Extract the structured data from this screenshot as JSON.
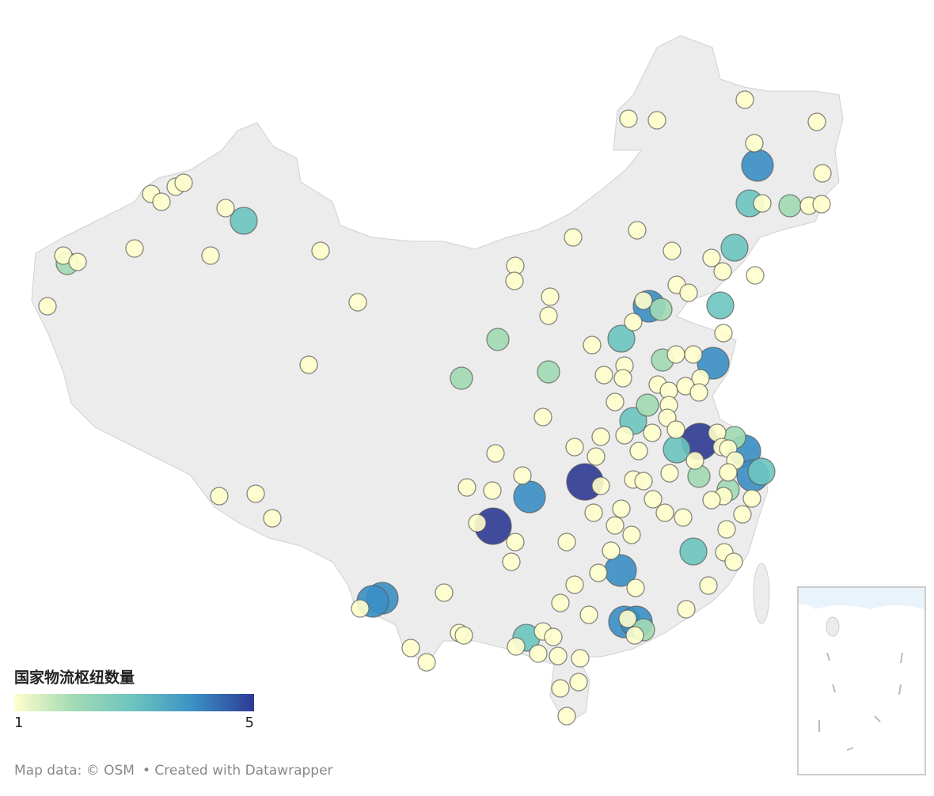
{
  "legend": {
    "title": "国家物流枢纽数量",
    "ticks": [
      1,
      5
    ],
    "colors": [
      "#ffffcc",
      "#a1dab4",
      "#6cc4c0",
      "#3a8fc4",
      "#2e3a94"
    ]
  },
  "footer": {
    "source": "Map data: © OSM",
    "credit": "• Created with Datawrapper"
  },
  "bubbles": {
    "values": [
      1,
      1,
      1,
      1,
      1,
      3,
      1,
      1,
      1,
      2,
      1,
      1,
      1,
      1,
      1,
      1,
      1,
      1,
      1,
      1,
      1,
      4,
      1,
      3,
      1,
      2,
      1,
      1,
      3,
      1,
      1,
      1,
      3,
      1,
      1,
      1,
      1,
      1,
      1,
      1,
      1,
      1,
      1,
      1,
      2,
      4,
      1,
      1,
      1,
      1,
      3,
      2,
      2,
      2,
      1,
      1,
      1,
      2,
      1,
      1,
      4,
      1,
      1,
      1,
      1,
      1,
      1,
      2,
      1,
      1,
      1,
      4,
      5,
      3,
      4,
      2,
      1,
      1,
      1,
      1,
      1,
      3,
      1,
      2,
      1,
      1,
      2,
      1,
      1,
      1,
      1,
      1,
      1,
      3,
      1,
      1,
      3,
      1,
      1,
      1,
      1,
      1,
      1,
      1,
      1,
      1,
      5,
      1,
      1,
      1,
      1,
      1,
      1,
      1,
      1,
      1,
      4,
      1,
      1,
      1,
      1,
      1,
      1,
      1,
      1,
      1,
      4,
      1,
      5,
      1,
      1,
      1,
      4,
      4,
      1,
      1,
      1,
      2,
      4,
      4,
      1,
      1,
      1,
      3,
      1,
      1,
      1,
      1,
      1,
      1,
      1,
      1,
      1,
      1,
      1,
      1,
      1
    ]
  }
}
